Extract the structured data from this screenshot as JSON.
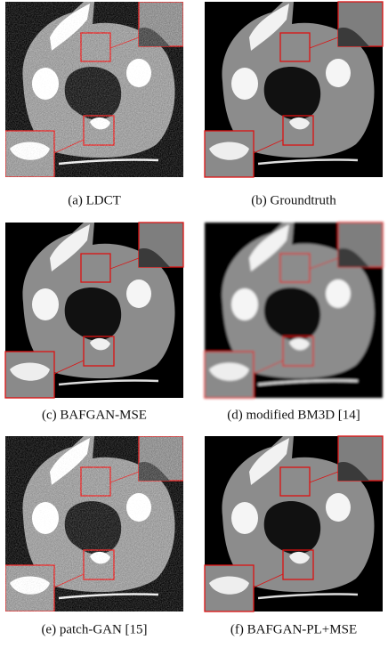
{
  "figure": {
    "panels": [
      {
        "caption": "(a)  LDCT"
      },
      {
        "caption": "(b)  Groundtruth"
      },
      {
        "caption": "(c)  BAFGAN-MSE"
      },
      {
        "caption": "(d)  modified BM3D [14]"
      },
      {
        "caption": "(e)  patch-GAN [15]"
      },
      {
        "caption": "(f)  BAFGAN-PL+MSE"
      }
    ]
  }
}
